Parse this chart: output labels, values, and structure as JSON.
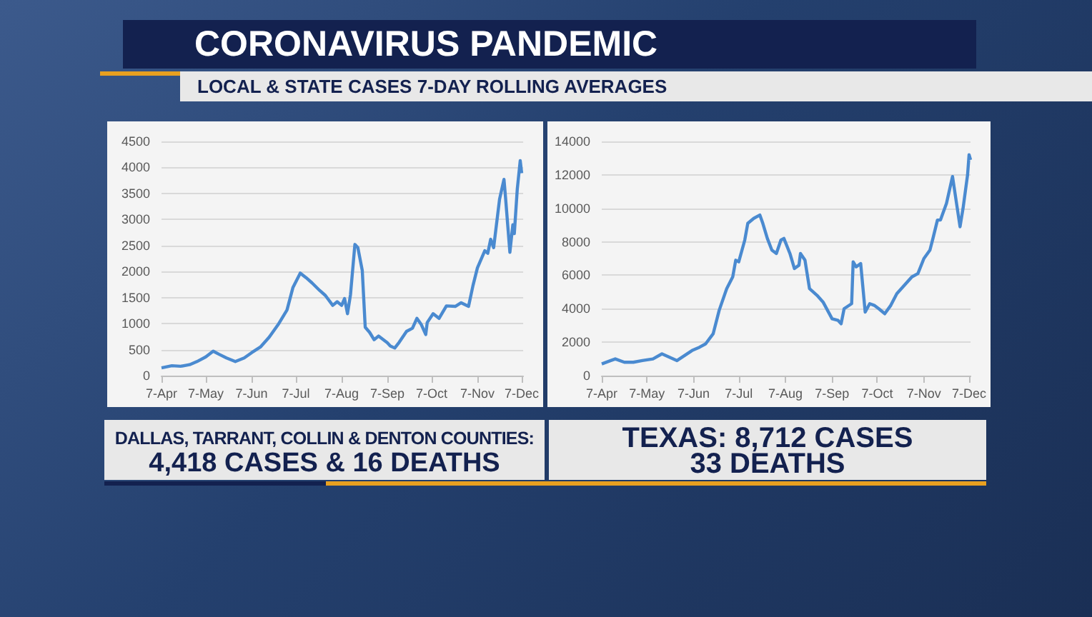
{
  "chart_data": [
    {
      "type": "line",
      "title": "CORONAVIRUS PANDEMIC",
      "subtitle": "LOCAL & STATE CASES 7-DAY ROLLING AVERAGES",
      "annotations": [
        "DALLAS, TARRANT, COLLIN & DENTON COUNTIES:",
        "4,418 CASES & 16 DEATHS"
      ],
      "series": [
        {
          "color": "#4a8ad0",
          "x": [
            "--04-07",
            "--04-14",
            "--04-20",
            "--04-26",
            "--05-01",
            "--05-07",
            "--05-12",
            "--05-16",
            "--05-21",
            "--05-27",
            "--06-02",
            "--06-07",
            "--06-13",
            "--06-19",
            "--06-25",
            "--07-01",
            "--07-05",
            "--07-10",
            "--07-14",
            "--07-18",
            "--07-23",
            "--07-27",
            "--08-01",
            "--08-04",
            "--08-07",
            "--08-09",
            "--08-11",
            "--08-13",
            "--08-16",
            "--08-18",
            "--08-21",
            "--08-23",
            "--08-26",
            "--08-29",
            "--09-01",
            "--09-07",
            "--09-09",
            "--09-12",
            "--09-15",
            "--09-20",
            "--09-24",
            "--09-27",
            "--09-30",
            "--10-03",
            "--10-04",
            "--10-08",
            "--10-12",
            "--10-17",
            "--10-23",
            "--10-27",
            "--11-01",
            "--11-04",
            "--11-07",
            "--11-12",
            "--11-14",
            "--11-16",
            "--11-18",
            "--11-22",
            "--11-25",
            "--11-26",
            "--11-29",
            "--12-01",
            "--12-02",
            "--12-04",
            "--12-06",
            "--12-07"
          ],
          "values": [
            150,
            190,
            180,
            210,
            270,
            360,
            470,
            410,
            340,
            270,
            340,
            440,
            550,
            740,
            980,
            1260,
            1690,
            1970,
            1880,
            1780,
            1640,
            1540,
            1350,
            1420,
            1350,
            1480,
            1190,
            1550,
            2520,
            2460,
            2020,
            930,
            830,
            690,
            760,
            630,
            570,
            530,
            640,
            850,
            910,
            1100,
            980,
            790,
            1020,
            1190,
            1100,
            1340,
            1330,
            1400,
            1330,
            1730,
            2070,
            2400,
            2350,
            2620,
            2460,
            3390,
            3770,
            3440,
            2370,
            2900,
            2730,
            3580,
            4130,
            3890
          ]
        }
      ],
      "xlim": [
        "--04-07",
        "--12-08"
      ],
      "xticks": [
        {
          "value": "--04-07",
          "label": "7-Apr"
        },
        {
          "value": "--05-07",
          "label": "7-May"
        },
        {
          "value": "--06-07",
          "label": "7-Jun"
        },
        {
          "value": "--07-07",
          "label": "7-Jul"
        },
        {
          "value": "--08-07",
          "label": "7-Aug"
        },
        {
          "value": "--09-07",
          "label": "7-Sep"
        },
        {
          "value": "--10-07",
          "label": "7-Oct"
        },
        {
          "value": "--11-07",
          "label": "7-Nov"
        },
        {
          "value": "--12-07",
          "label": "7-Dec"
        }
      ],
      "ylim": [
        0,
        4500
      ],
      "yticks": [
        0,
        500,
        1000,
        1500,
        2000,
        2500,
        3000,
        3500,
        4000,
        4500
      ],
      "grid": "y",
      "marker": "none",
      "line_style": "solid"
    },
    {
      "type": "line",
      "annotations": [
        "TEXAS: 8,712 CASES",
        "33 DEATHS"
      ],
      "series": [
        {
          "color": "#4a8ad0",
          "x": [
            "--04-07",
            "--04-13",
            "--04-16",
            "--04-22",
            "--04-28",
            "--05-04",
            "--05-11",
            "--05-17",
            "--05-22",
            "--05-27",
            "--06-01",
            "--06-06",
            "--06-11",
            "--06-15",
            "--06-20",
            "--06-24",
            "--06-29",
            "--07-03",
            "--07-05",
            "--07-07",
            "--07-11",
            "--07-13",
            "--07-17",
            "--07-21",
            "--07-23",
            "--07-26",
            "--07-29",
            "--08-01",
            "--08-04",
            "--08-06",
            "--08-10",
            "--08-13",
            "--08-16",
            "--08-17",
            "--08-20",
            "--08-23",
            "--08-28",
            "--09-01",
            "--09-04",
            "--09-07",
            "--09-11",
            "--09-13",
            "--09-15",
            "--09-20",
            "--09-21",
            "--09-23",
            "--09-26",
            "--09-29",
            "--10-02",
            "--10-05",
            "--10-08",
            "--10-12",
            "--10-16",
            "--10-20",
            "--10-25",
            "--10-30",
            "--11-03",
            "--11-07",
            "--11-11",
            "--11-13",
            "--11-16",
            "--11-18",
            "--11-22",
            "--11-26",
            "--12-01",
            "--12-03",
            "--12-06",
            "--12-07",
            "--12-08"
          ],
          "values": [
            700,
            900,
            1000,
            800,
            800,
            900,
            1000,
            1300,
            1100,
            900,
            1200,
            1500,
            1700,
            1900,
            2500,
            3900,
            5200,
            5900,
            6900,
            6800,
            8100,
            9100,
            9400,
            9600,
            9100,
            8200,
            7500,
            7300,
            8100,
            8200,
            7300,
            6400,
            6600,
            7300,
            6900,
            5200,
            4800,
            4400,
            3900,
            3400,
            3300,
            3100,
            4000,
            4300,
            6800,
            6500,
            6700,
            3800,
            4300,
            4200,
            4000,
            3700,
            4200,
            4900,
            5400,
            5900,
            6100,
            7000,
            7500,
            8200,
            9300,
            9300,
            10300,
            11900,
            8900,
            10000,
            12000,
            13200,
            12900
          ]
        }
      ],
      "xlim": [
        "--04-07",
        "--12-08"
      ],
      "xticks": [
        {
          "value": "--04-07",
          "label": "7-Apr"
        },
        {
          "value": "--05-07",
          "label": "7-May"
        },
        {
          "value": "--06-07",
          "label": "7-Jun"
        },
        {
          "value": "--07-07",
          "label": "7-Jul"
        },
        {
          "value": "--08-07",
          "label": "7-Aug"
        },
        {
          "value": "--09-07",
          "label": "7-Sep"
        },
        {
          "value": "--10-07",
          "label": "7-Oct"
        },
        {
          "value": "--11-07",
          "label": "7-Nov"
        },
        {
          "value": "--12-07",
          "label": "7-Dec"
        }
      ],
      "ylim": [
        0,
        14000
      ],
      "yticks": [
        0,
        2000,
        4000,
        6000,
        8000,
        10000,
        12000,
        14000
      ],
      "grid": "y",
      "marker": "none",
      "line_style": "solid"
    }
  ]
}
